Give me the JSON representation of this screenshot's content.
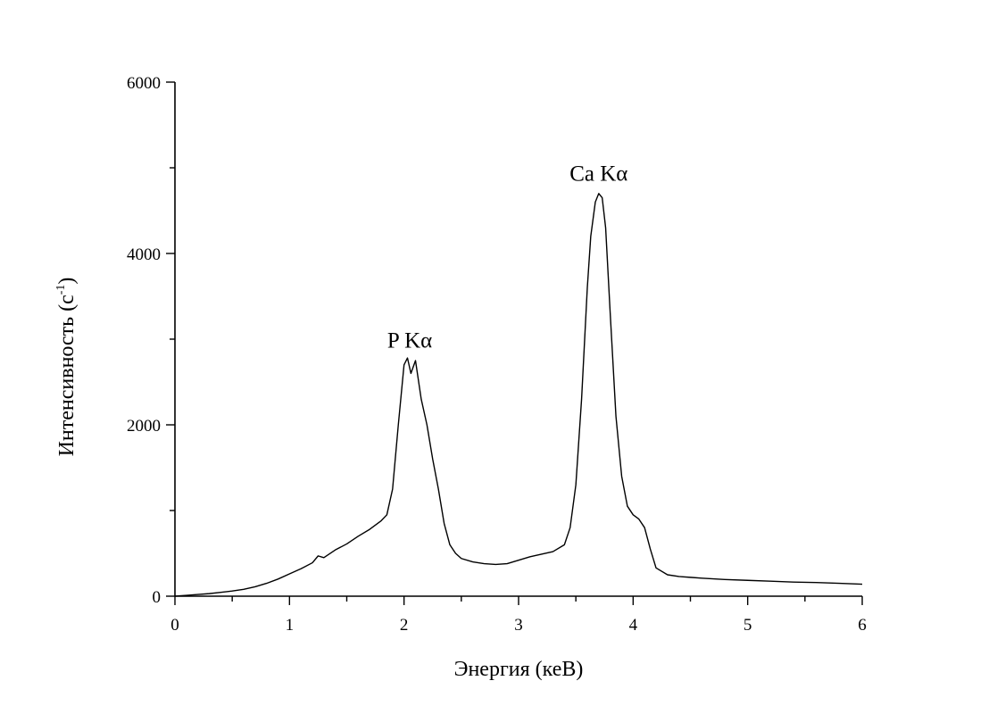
{
  "chart_data": {
    "type": "line",
    "title": "",
    "xlabel": "Энергия (кеВ)",
    "ylabel": "Интенсивность (с",
    "ylabel_sup": "-1",
    "ylabel_close": ")",
    "xlim": [
      0,
      6
    ],
    "ylim": [
      0,
      6000
    ],
    "xticks": [
      "0",
      "1",
      "2",
      "3",
      "4",
      "5",
      "6"
    ],
    "yticks": [
      "0",
      "2000",
      "4000",
      "6000"
    ],
    "grid": false,
    "annotations": [
      {
        "text": "P Kα",
        "x": 2.05,
        "y": 2900
      },
      {
        "text": "Ca Kα",
        "x": 3.7,
        "y": 4850
      }
    ],
    "series": [
      {
        "x": [
          0,
          0.1,
          0.2,
          0.3,
          0.4,
          0.5,
          0.6,
          0.7,
          0.8,
          0.9,
          1.0,
          1.1,
          1.2,
          1.25,
          1.3,
          1.4,
          1.5,
          1.6,
          1.7,
          1.75,
          1.8,
          1.85,
          1.9,
          1.95,
          2.0,
          2.03,
          2.06,
          2.1,
          2.15,
          2.2,
          2.25,
          2.3,
          2.35,
          2.4,
          2.45,
          2.5,
          2.6,
          2.7,
          2.8,
          2.9,
          3.0,
          3.1,
          3.2,
          3.3,
          3.4,
          3.45,
          3.5,
          3.55,
          3.6,
          3.63,
          3.67,
          3.7,
          3.73,
          3.76,
          3.8,
          3.85,
          3.9,
          3.95,
          4.0,
          4.05,
          4.1,
          4.15,
          4.2,
          4.3,
          4.4,
          4.5,
          4.6,
          4.8,
          5.0,
          5.2,
          5.4,
          5.6,
          5.8,
          6.0
        ],
        "y": [
          0,
          10,
          20,
          30,
          45,
          60,
          80,
          110,
          150,
          200,
          260,
          320,
          390,
          470,
          450,
          540,
          610,
          700,
          780,
          830,
          880,
          950,
          1250,
          2000,
          2700,
          2780,
          2600,
          2750,
          2300,
          2000,
          1600,
          1250,
          850,
          600,
          500,
          440,
          400,
          380,
          370,
          380,
          420,
          460,
          490,
          520,
          600,
          800,
          1300,
          2300,
          3600,
          4200,
          4600,
          4700,
          4650,
          4300,
          3300,
          2100,
          1400,
          1050,
          950,
          900,
          800,
          550,
          330,
          250,
          230,
          220,
          210,
          195,
          185,
          175,
          165,
          160,
          150,
          140
        ]
      }
    ]
  }
}
